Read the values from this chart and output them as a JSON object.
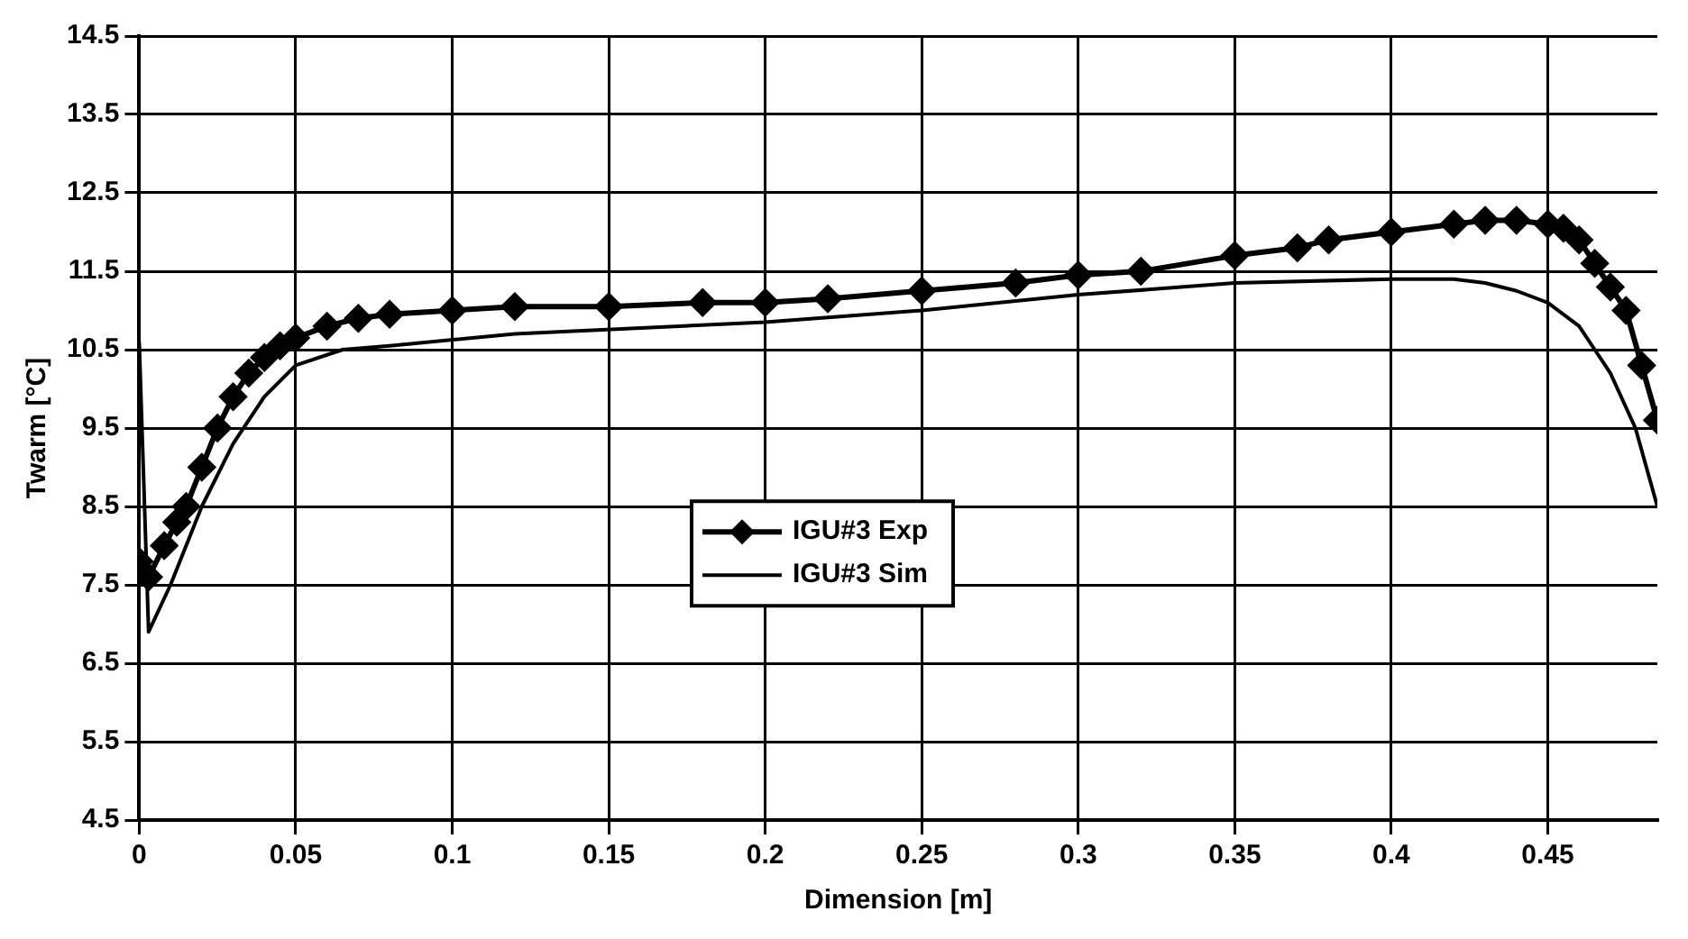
{
  "chart_data": {
    "type": "line",
    "xlabel": "Dimension [m]",
    "ylabel": "Twarm [°C]",
    "xlim": [
      0,
      0.485
    ],
    "xticks": [
      0,
      0.05,
      0.1,
      0.15,
      0.2,
      0.25,
      0.3,
      0.35,
      0.4,
      0.45
    ],
    "ylim": [
      4.5,
      14.5
    ],
    "yticks": [
      4.5,
      5.5,
      6.5,
      7.5,
      8.5,
      9.5,
      10.5,
      11.5,
      12.5,
      13.5,
      14.5
    ],
    "grid": true,
    "legend": "center",
    "series": [
      {
        "name": "IGU#3 Exp",
        "color": "#000000",
        "marker": "diamond",
        "x": [
          0,
          0.003,
          0.008,
          0.012,
          0.015,
          0.02,
          0.025,
          0.03,
          0.035,
          0.04,
          0.045,
          0.05,
          0.06,
          0.07,
          0.08,
          0.1,
          0.12,
          0.15,
          0.18,
          0.2,
          0.22,
          0.25,
          0.28,
          0.3,
          0.32,
          0.35,
          0.37,
          0.38,
          0.4,
          0.42,
          0.43,
          0.44,
          0.45,
          0.455,
          0.46,
          0.465,
          0.47,
          0.475,
          0.48,
          0.485
        ],
        "values": [
          7.8,
          7.6,
          8.0,
          8.3,
          8.5,
          9.0,
          9.5,
          9.9,
          10.2,
          10.4,
          10.55,
          10.65,
          10.8,
          10.9,
          10.95,
          11.0,
          11.05,
          11.05,
          11.1,
          11.1,
          11.15,
          11.25,
          11.35,
          11.45,
          11.5,
          11.7,
          11.8,
          11.9,
          12.0,
          12.1,
          12.15,
          12.15,
          12.1,
          12.05,
          11.9,
          11.6,
          11.3,
          11.0,
          10.3,
          9.6
        ]
      },
      {
        "name": "IGU#3 Sim",
        "color": "#000000",
        "marker": "none",
        "x": [
          0,
          0.003,
          0.01,
          0.02,
          0.03,
          0.04,
          0.05,
          0.065,
          0.08,
          0.12,
          0.2,
          0.25,
          0.3,
          0.35,
          0.4,
          0.42,
          0.43,
          0.44,
          0.45,
          0.46,
          0.465,
          0.47,
          0.478,
          0.485
        ],
        "values": [
          10.6,
          6.9,
          7.5,
          8.5,
          9.3,
          9.9,
          10.3,
          10.5,
          10.55,
          10.7,
          10.85,
          11.0,
          11.2,
          11.35,
          11.4,
          11.4,
          11.35,
          11.25,
          11.1,
          10.8,
          10.5,
          10.2,
          9.5,
          8.5
        ]
      }
    ]
  }
}
